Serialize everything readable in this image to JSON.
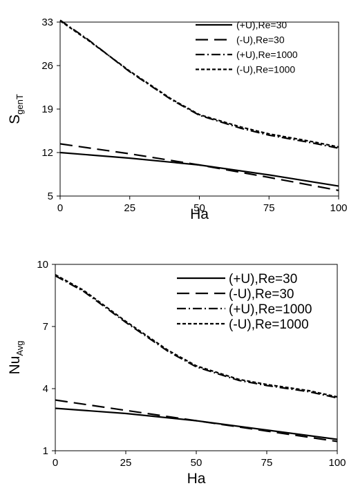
{
  "chart_data": [
    {
      "type": "line",
      "title": "",
      "xlabel": "Ha",
      "ylabel": {
        "main": "S",
        "sub": "genT"
      },
      "xlim": [
        0,
        100
      ],
      "ylim": [
        5,
        33
      ],
      "xticks": [
        "0",
        "25",
        "50",
        "75",
        "100"
      ],
      "yticks": [
        "5",
        "12",
        "19",
        "26",
        "33"
      ],
      "grid": false,
      "legend_position": "top-right",
      "series": [
        {
          "name": "(+U),Re=30",
          "style": "solid",
          "x": [
            0,
            25,
            50,
            75,
            100
          ],
          "y": [
            12.0,
            11.1,
            10.0,
            8.4,
            6.6
          ]
        },
        {
          "name": "(-U),Re=30",
          "style": "long-dash",
          "x": [
            0,
            25,
            50,
            75,
            100
          ],
          "y": [
            13.4,
            11.8,
            10.0,
            8.0,
            5.9
          ]
        },
        {
          "name": "(+U),Re=1000",
          "style": "dash-dot",
          "x": [
            0,
            10,
            25,
            40,
            50,
            65,
            75,
            90,
            100
          ],
          "y": [
            33.3,
            30.2,
            25.0,
            20.5,
            18.0,
            15.9,
            14.8,
            13.6,
            12.7
          ]
        },
        {
          "name": "(-U),Re=1000",
          "style": "short-dash",
          "x": [
            0,
            10,
            25,
            40,
            50,
            65,
            75,
            90,
            100
          ],
          "y": [
            33.2,
            30.1,
            25.1,
            20.6,
            18.1,
            16.1,
            15.0,
            13.8,
            12.9
          ]
        }
      ]
    },
    {
      "type": "line",
      "title": "",
      "xlabel": "Ha",
      "ylabel": {
        "main": "Nu",
        "sub": "Avg"
      },
      "xlim": [
        0,
        100
      ],
      "ylim": [
        1,
        10
      ],
      "xticks": [
        "0",
        "25",
        "50",
        "75",
        "100"
      ],
      "yticks": [
        "1",
        "4",
        "7",
        "10"
      ],
      "grid": false,
      "legend_position": "top-right",
      "series": [
        {
          "name": "(+U),Re=30",
          "style": "solid",
          "x": [
            0,
            25,
            50,
            75,
            100
          ],
          "y": [
            3.05,
            2.8,
            2.45,
            2.0,
            1.55
          ]
        },
        {
          "name": "(-U),Re=30",
          "style": "long-dash",
          "x": [
            0,
            25,
            50,
            75,
            100
          ],
          "y": [
            3.45,
            2.95,
            2.45,
            1.95,
            1.45
          ]
        },
        {
          "name": "(+U),Re=1000",
          "style": "dash-dot",
          "x": [
            0,
            10,
            25,
            40,
            50,
            65,
            75,
            90,
            100
          ],
          "y": [
            9.45,
            8.7,
            7.2,
            5.8,
            5.05,
            4.4,
            4.15,
            3.85,
            3.55
          ]
        },
        {
          "name": "(-U),Re=1000",
          "style": "short-dash",
          "x": [
            0,
            10,
            25,
            40,
            50,
            65,
            75,
            90,
            100
          ],
          "y": [
            9.5,
            8.75,
            7.25,
            5.85,
            5.1,
            4.45,
            4.2,
            3.9,
            3.6
          ]
        }
      ]
    }
  ]
}
